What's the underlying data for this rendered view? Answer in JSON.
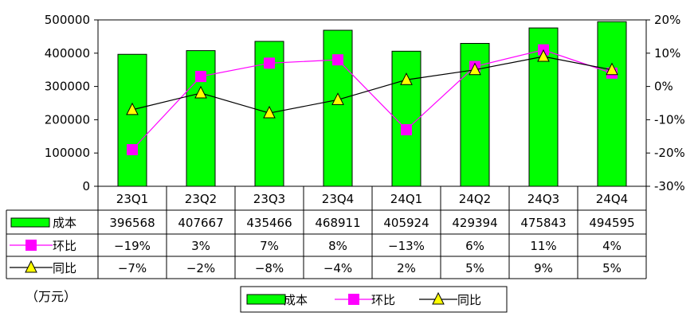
{
  "chart_data": {
    "type": "bar",
    "categories": [
      "23Q1",
      "23Q2",
      "23Q3",
      "23Q4",
      "24Q1",
      "24Q2",
      "24Q3",
      "24Q4"
    ],
    "y_left": {
      "ticks": [
        "500000",
        "400000",
        "300000",
        "200000",
        "100000",
        "0"
      ],
      "ylim": [
        0,
        500000
      ]
    },
    "y_right": {
      "ticks": [
        "20%",
        "10%",
        "0%",
        "-10%",
        "-20%",
        "-30%"
      ],
      "ylim": [
        -30,
        20
      ],
      "unit": "%"
    },
    "grid": false,
    "legend_placement": "bottom",
    "unit_label": "（万元）",
    "series": [
      {
        "name": "成本",
        "kind": "bar",
        "axis": "left",
        "color": "#00FF00",
        "values": [
          396568,
          407667,
          435466,
          468911,
          405924,
          429394,
          475843,
          494595
        ],
        "labels": [
          "396568",
          "407667",
          "435466",
          "468911",
          "405924",
          "429394",
          "475843",
          "494595"
        ]
      },
      {
        "name": "环比",
        "kind": "line",
        "axis": "right",
        "color": "#FF00FF",
        "marker": "square",
        "values": [
          -19,
          3,
          7,
          8,
          -13,
          6,
          11,
          4
        ],
        "labels": [
          "−19%",
          "3%",
          "7%",
          "8%",
          "−13%",
          "6%",
          "11%",
          "4%"
        ]
      },
      {
        "name": "同比",
        "kind": "line",
        "axis": "right",
        "color": "#000000",
        "marker": "triangle",
        "marker_color": "#FFFF00",
        "values": [
          -7,
          -2,
          -8,
          -4,
          2,
          5,
          9,
          5
        ],
        "labels": [
          "−7%",
          "−2%",
          "−8%",
          "−4%",
          "2%",
          "5%",
          "9%",
          "5%"
        ]
      }
    ]
  }
}
